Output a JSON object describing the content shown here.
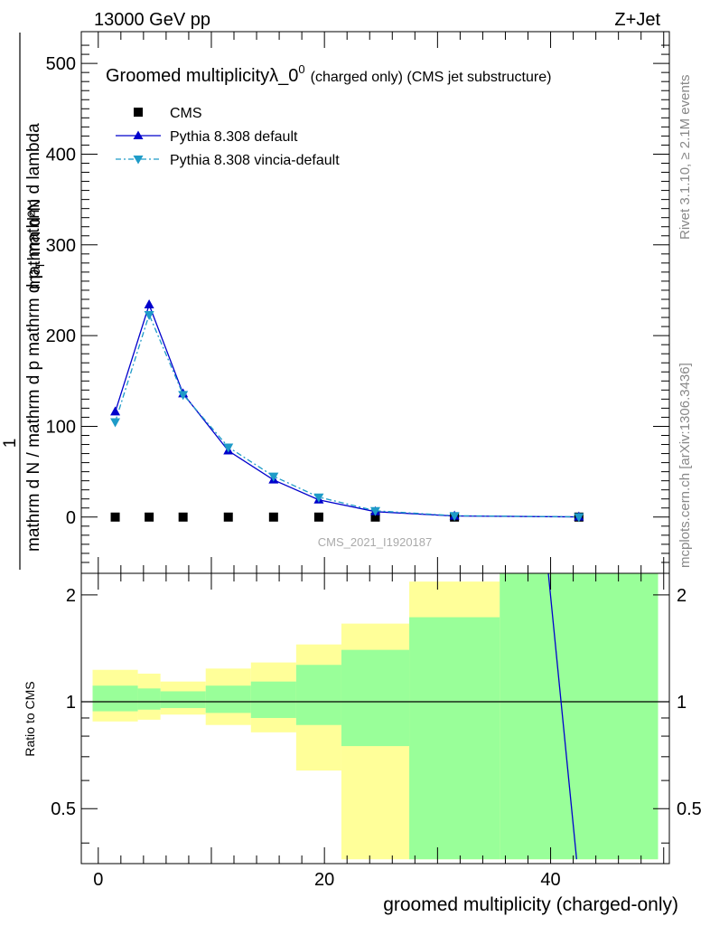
{
  "header": {
    "left": "13000 GeV pp",
    "right": "Z+Jet"
  },
  "side_labels": {
    "rivet": "Rivet 3.1.10, ≥ 2.1M events",
    "mcplots": "mcplots.cern.ch [arXiv:1306.3436]"
  },
  "watermark": "CMS_2021_I1920187",
  "chart_data": [
    {
      "type": "scatter",
      "title": "Groomed multiplicityλ_0",
      "title_sup": "0",
      "title_note": "(charged only) (CMS jet substructure)",
      "ylabel": {
        "numerator": "mathrm d²N",
        "denominator_one": "1",
        "denominator_frac": "mathrm d N / mathrm d p",
        "denominator_p": "mathrm d p",
        "denominator_tail": "mathrm d lambda"
      },
      "xlim": [
        -1.5,
        50.5
      ],
      "ylim": [
        -62,
        535
      ],
      "yticks": [
        0,
        100,
        200,
        300,
        400,
        500
      ],
      "yticklabels": [
        "0",
        "100",
        "200",
        "300",
        "400",
        "500"
      ],
      "legend_position": "top-left",
      "colors": {
        "cms": "#000000",
        "default": "#0000cc",
        "vincia": "#1e9bc8"
      },
      "series": [
        {
          "name": "CMS",
          "x": [
            1.5,
            4.5,
            7.5,
            11.5,
            15.5,
            19.5,
            24.5,
            31.5,
            42.5
          ],
          "values": [
            0,
            0,
            0,
            0,
            0,
            0,
            0,
            0,
            0
          ]
        },
        {
          "name": "Pythia 8.308 default",
          "x": [
            1.5,
            4.5,
            7.5,
            11.5,
            15.5,
            19.5,
            24.5,
            31.5,
            42.5
          ],
          "values": [
            116,
            234,
            136,
            73,
            41,
            19,
            6,
            1.2,
            0.2
          ]
        },
        {
          "name": "Pythia 8.308 vincia-default",
          "x": [
            1.5,
            4.5,
            7.5,
            11.5,
            15.5,
            19.5,
            24.5,
            31.5,
            42.5
          ],
          "values": [
            105,
            223,
            135,
            77,
            45,
            22,
            7,
            1.5,
            0.3
          ]
        }
      ]
    },
    {
      "type": "area",
      "ylabel": "Ratio to CMS",
      "xlabel": "groomed multiplicity (charged-only)",
      "xlim": [
        -1.5,
        50.5
      ],
      "ylim": [
        0.35,
        2.3
      ],
      "log_y": true,
      "xticks": [
        0,
        20,
        40
      ],
      "xticklabels": [
        "0",
        "20",
        "40"
      ],
      "yticks": [
        0.5,
        1,
        2
      ],
      "yticklabels": [
        "0.5",
        "1",
        "2"
      ],
      "reference_line": 1,
      "colors": {
        "inner_band": "#99ff99",
        "outer_band": "#ffff99",
        "ratio_line": "#0000cc"
      },
      "bins": [
        {
          "lo": -0.5,
          "hi": 3.5,
          "inner": [
            0.94,
            1.11
          ],
          "outer": [
            0.88,
            1.23
          ]
        },
        {
          "lo": 3.5,
          "hi": 5.5,
          "inner": [
            0.95,
            1.09
          ],
          "outer": [
            0.89,
            1.2
          ]
        },
        {
          "lo": 5.5,
          "hi": 9.5,
          "inner": [
            0.96,
            1.07
          ],
          "outer": [
            0.92,
            1.14
          ]
        },
        {
          "lo": 9.5,
          "hi": 13.5,
          "inner": [
            0.93,
            1.11
          ],
          "outer": [
            0.86,
            1.24
          ]
        },
        {
          "lo": 13.5,
          "hi": 17.5,
          "inner": [
            0.9,
            1.14
          ],
          "outer": [
            0.82,
            1.29
          ]
        },
        {
          "lo": 17.5,
          "hi": 21.5,
          "inner": [
            0.86,
            1.27
          ],
          "outer": [
            0.64,
            1.45
          ]
        },
        {
          "lo": 21.5,
          "hi": 27.5,
          "inner": [
            0.75,
            1.4
          ],
          "outer": [
            0.36,
            1.66
          ]
        },
        {
          "lo": 27.5,
          "hi": 35.5,
          "inner": [
            0.36,
            1.73
          ],
          "outer": [
            0.36,
            2.18
          ]
        },
        {
          "lo": 35.5,
          "hi": 49.5,
          "inner": [
            0.36,
            2.3
          ],
          "outer": [
            0.36,
            2.3
          ]
        }
      ],
      "ratio_line": {
        "x": [
          39.8,
          42.3
        ],
        "values": [
          2.3,
          0.36
        ]
      }
    }
  ]
}
